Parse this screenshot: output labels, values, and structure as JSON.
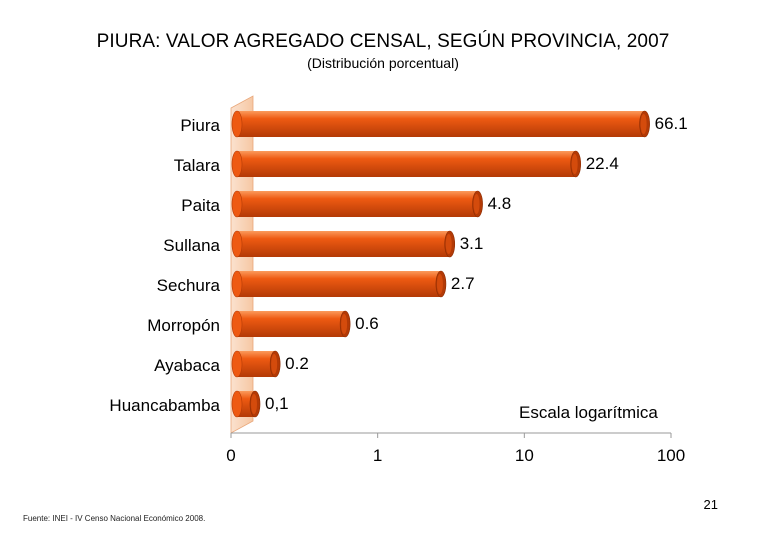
{
  "slide": {
    "source": "Fuente: INEI - IV Censo Nacional Económico 2008.",
    "page_number": "21"
  },
  "chart_data": {
    "type": "bar",
    "orientation": "horizontal",
    "title": "PIURA: VALOR AGREGADO CENSAL, SEGÚN PROVINCIA,  2007",
    "subtitle": "(Distribución porcentual)",
    "categories": [
      "Piura",
      "Talara",
      "Paita",
      "Sullana",
      "Sechura",
      "Morropón",
      "Ayabaca",
      "Huancabamba"
    ],
    "values": [
      66.1,
      22.4,
      4.8,
      3.1,
      2.7,
      0.6,
      0.2,
      0.1
    ],
    "value_labels": [
      "66.1",
      "22.4",
      "4.8",
      "3.1",
      "2.7",
      "0.6",
      "0.2",
      "0,1"
    ],
    "x_scale": "log",
    "x_ticks": [
      0.1,
      1,
      10,
      100
    ],
    "x_tick_labels": [
      "0",
      "1",
      "10",
      "100"
    ],
    "xlim": [
      0.1,
      100
    ],
    "annotation": "Escala logarítmica",
    "colors": {
      "bar": "#ee5a12",
      "bar_dark": "#b33a06",
      "bar_light": "#fb9a5c",
      "backwall": "#f6c7a3"
    },
    "grid": false,
    "legend": "none",
    "style": "3d-cylinder"
  }
}
